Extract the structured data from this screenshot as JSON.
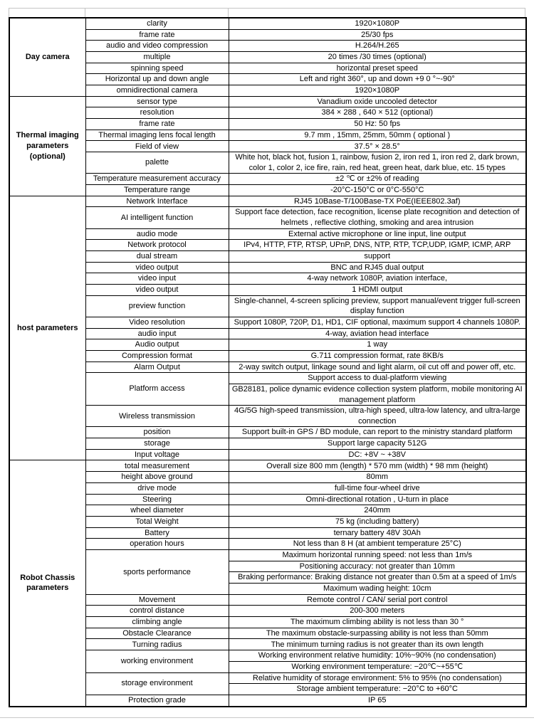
{
  "colors": {
    "border": "#000000",
    "faint_grid": "#c4c4c4",
    "background": "#ffffff"
  },
  "table": {
    "sections": [
      {
        "category": "Day camera",
        "rows": [
          {
            "param": "clarity",
            "values": [
              "1920×1080P"
            ]
          },
          {
            "param": "frame rate",
            "values": [
              "25/30 fps"
            ]
          },
          {
            "param": "audio and video compression",
            "values": [
              "H.264/H.265"
            ]
          },
          {
            "param": "multiple",
            "values": [
              "20 times /30 times (optional)"
            ]
          },
          {
            "param": "spinning speed",
            "values": [
              "horizontal preset speed"
            ]
          },
          {
            "param": "Horizontal up and down angle",
            "values": [
              "Left and right 360°, up and down +9 0 °~-90°"
            ]
          },
          {
            "param": "omnidirectional camera",
            "values": [
              "1920×1080P"
            ]
          }
        ]
      },
      {
        "category": "Thermal imaging parameters (optional)",
        "rows": [
          {
            "param": "sensor type",
            "values": [
              "Vanadium oxide uncooled detector"
            ]
          },
          {
            "param": "resolution",
            "values": [
              "384 × 288 , 640 × 512 (optional)"
            ]
          },
          {
            "param": "frame rate",
            "values": [
              "50 Hz: 50 fps"
            ]
          },
          {
            "param": "Thermal imaging lens focal length",
            "values": [
              "9.7 mm , 15mm, 25mm, 50mm ( optional )"
            ]
          },
          {
            "param": "Field of view",
            "values": [
              "37.5° × 28.5°"
            ]
          },
          {
            "param": "palette",
            "values": [
              "White hot, black hot, fusion 1, rainbow, fusion 2, iron red 1, iron red 2, dark brown, color 1, color 2, ice fire, rain, red heat, green heat, dark blue, etc. 15 types"
            ]
          },
          {
            "param": "Temperature measurement accuracy",
            "values": [
              "±2 ℃ or ±2% of reading"
            ]
          },
          {
            "param": "Temperature range",
            "values": [
              "-20°C-150°C or 0°C-550°C"
            ]
          }
        ]
      },
      {
        "category": "host parameters",
        "rows": [
          {
            "param": "Network Interface",
            "values": [
              "RJ45 10Base-T/100Base-TX PoE(IEEE802.3af)"
            ]
          },
          {
            "param": "AI intelligent function",
            "values": [
              "Support face detection, face recognition, license plate recognition and detection of helmets , reflective clothing, smoking and area intrusion"
            ]
          },
          {
            "param": "audio mode",
            "values": [
              "External active microphone or line input, line output"
            ]
          },
          {
            "param": "Network protocol",
            "values": [
              "IPv4, HTTP, FTP, RTSP, UPnP, DNS, NTP, RTP, TCP,UDP, IGMP, ICMP, ARP"
            ]
          },
          {
            "param": "dual stream",
            "values": [
              "support"
            ]
          },
          {
            "param": "video output",
            "values": [
              "BNC and RJ45 dual output"
            ]
          },
          {
            "param": "video input",
            "values": [
              "4-way network 1080P, aviation interface,"
            ]
          },
          {
            "param": "video output",
            "values": [
              "1 HDMI output"
            ]
          },
          {
            "param": "preview function",
            "values": [
              "Single-channel, 4-screen splicing preview, support manual/event trigger full-screen display function"
            ]
          },
          {
            "param": "Video resolution",
            "values": [
              "Support 1080P, 720P, D1, HD1, CIF optional, maximum support 4 channels 1080P."
            ]
          },
          {
            "param": "audio input",
            "values": [
              "4-way, aviation head interface"
            ]
          },
          {
            "param": "Audio output",
            "values": [
              "1 way"
            ]
          },
          {
            "param": "Compression format",
            "values": [
              "G.711 compression format, rate 8KB/s"
            ]
          },
          {
            "param": "Alarm Output",
            "values": [
              "2-way switch output, linkage sound and light alarm, oil cut off and power off, etc."
            ]
          },
          {
            "param": "Platform access",
            "values": [
              "Support access to dual-platform viewing",
              "GB28181, police dynamic evidence collection system platform, mobile monitoring AI management platform"
            ]
          },
          {
            "param": "Wireless transmission",
            "values": [
              "4G/5G high-speed transmission, ultra-high speed, ultra-low latency, and ultra-large connection"
            ]
          },
          {
            "param": "position",
            "values": [
              "Support built-in GPS / BD module, can report to the ministry standard platform"
            ]
          },
          {
            "param": "storage",
            "values": [
              "Support large capacity 512G"
            ]
          },
          {
            "param": "Input voltage",
            "values": [
              "DC: +8V ~ +38V"
            ]
          }
        ]
      },
      {
        "category": "Robot Chassis parameters",
        "rows": [
          {
            "param": "total measurement",
            "values": [
              "Overall size 800 mm (length) * 570 mm (width) * 98 mm (height)"
            ]
          },
          {
            "param": "height above ground",
            "values": [
              "80mm"
            ]
          },
          {
            "param": "drive mode",
            "values": [
              "full-time four-wheel drive"
            ]
          },
          {
            "param": "Steering",
            "values": [
              "Omni-directional rotation , U-turn in place"
            ]
          },
          {
            "param": "wheel diameter",
            "values": [
              "240mm"
            ]
          },
          {
            "param": "Total Weight",
            "values": [
              "75 kg (including battery)"
            ]
          },
          {
            "param": "Battery",
            "values": [
              "ternary battery 48V 30Ah"
            ]
          },
          {
            "param": "operation hours",
            "values": [
              "Not less than 8 H (at ambient temperature 25°C)"
            ]
          },
          {
            "param": "sports performance",
            "values": [
              "Maximum horizontal running speed: not less than 1m/s",
              "Positioning accuracy: not greater than 10mm",
              "Braking performance: Braking distance not greater than 0.5m at a speed of 1m/s",
              "Maximum wading height: 10cm"
            ]
          },
          {
            "param": "Movement",
            "values": [
              "Remote control / CAN/ serial port control"
            ]
          },
          {
            "param": "control distance",
            "values": [
              "200-300 meters"
            ]
          },
          {
            "param": "climbing angle",
            "values": [
              "The maximum climbing ability is not less than 30 °"
            ]
          },
          {
            "param": "Obstacle Clearance",
            "values": [
              "The maximum obstacle-surpassing ability is not less than 50mm"
            ]
          },
          {
            "param": "Turning radius",
            "values": [
              "The minimum turning radius is not greater than its own length"
            ]
          },
          {
            "param": "working environment",
            "values": [
              "Working environment relative humidity: 10%~90% (no condensation)",
              "Working environment temperature: −20℃~+55℃"
            ]
          },
          {
            "param": "storage environment",
            "values": [
              "Relative humidity of storage environment: 5% to 95% (no condensation)",
              "Storage ambient temperature: −20°C to +60°C"
            ]
          },
          {
            "param": "Protection grade",
            "values": [
              "IP 65"
            ]
          }
        ]
      }
    ]
  }
}
